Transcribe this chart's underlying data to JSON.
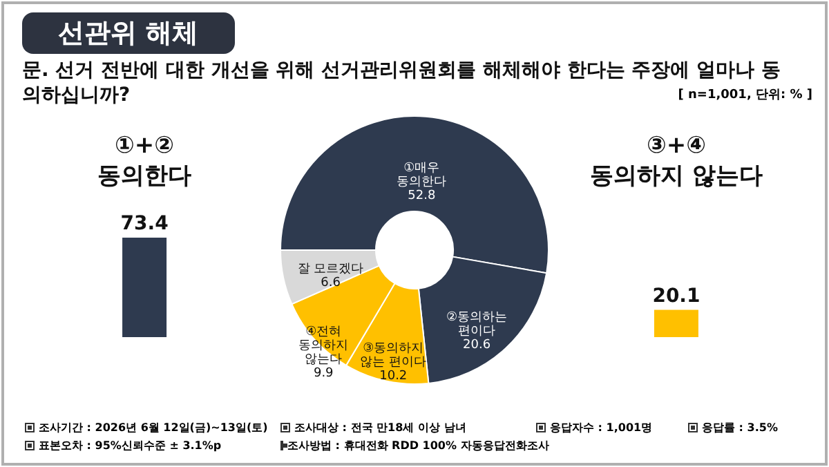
{
  "chart_data": [
    {
      "type": "bar",
      "categories": [
        "①+② 동의한다",
        "③+④ 동의하지 않는다"
      ],
      "values": [
        73.4,
        20.1
      ],
      "colors": [
        "#2e3a4f",
        "#ffc000"
      ],
      "data_labels": true
    },
    {
      "type": "donut",
      "title": "선관위 해체",
      "subtitle": "문. 선거 전반에 대한 개선을 위해 선거관리위원회를 해체해야 한다는 주장에 얼마나 동의하십니까?",
      "categories": [
        "①매우 동의한다",
        "②동의하는 편이다",
        "③동의하지 않는 편이다",
        "④전혀 동의하지 않는다",
        "잘 모르겠다"
      ],
      "values": [
        52.8,
        20.6,
        10.2,
        9.9,
        6.6
      ],
      "colors": [
        "#2e3a4f",
        "#2e3a4f",
        "#ffc000",
        "#ffc000",
        "#d9d9d9"
      ],
      "data_labels": true,
      "annotations": [
        "[ n=1,001, 단위: % ]",
        "조사기간 : 2026년 6월 12일(금)~13일(토)",
        "조사대상 : 전국 만18세 이상 남녀",
        "응답자수 : 1,001명",
        "응답률 : 3.5%",
        "표본오차 : 95%신뢰수준 ± 3.1%p",
        "조사방법 : 휴대전화 RDD 100% 자동응답전화조사"
      ]
    }
  ]
}
